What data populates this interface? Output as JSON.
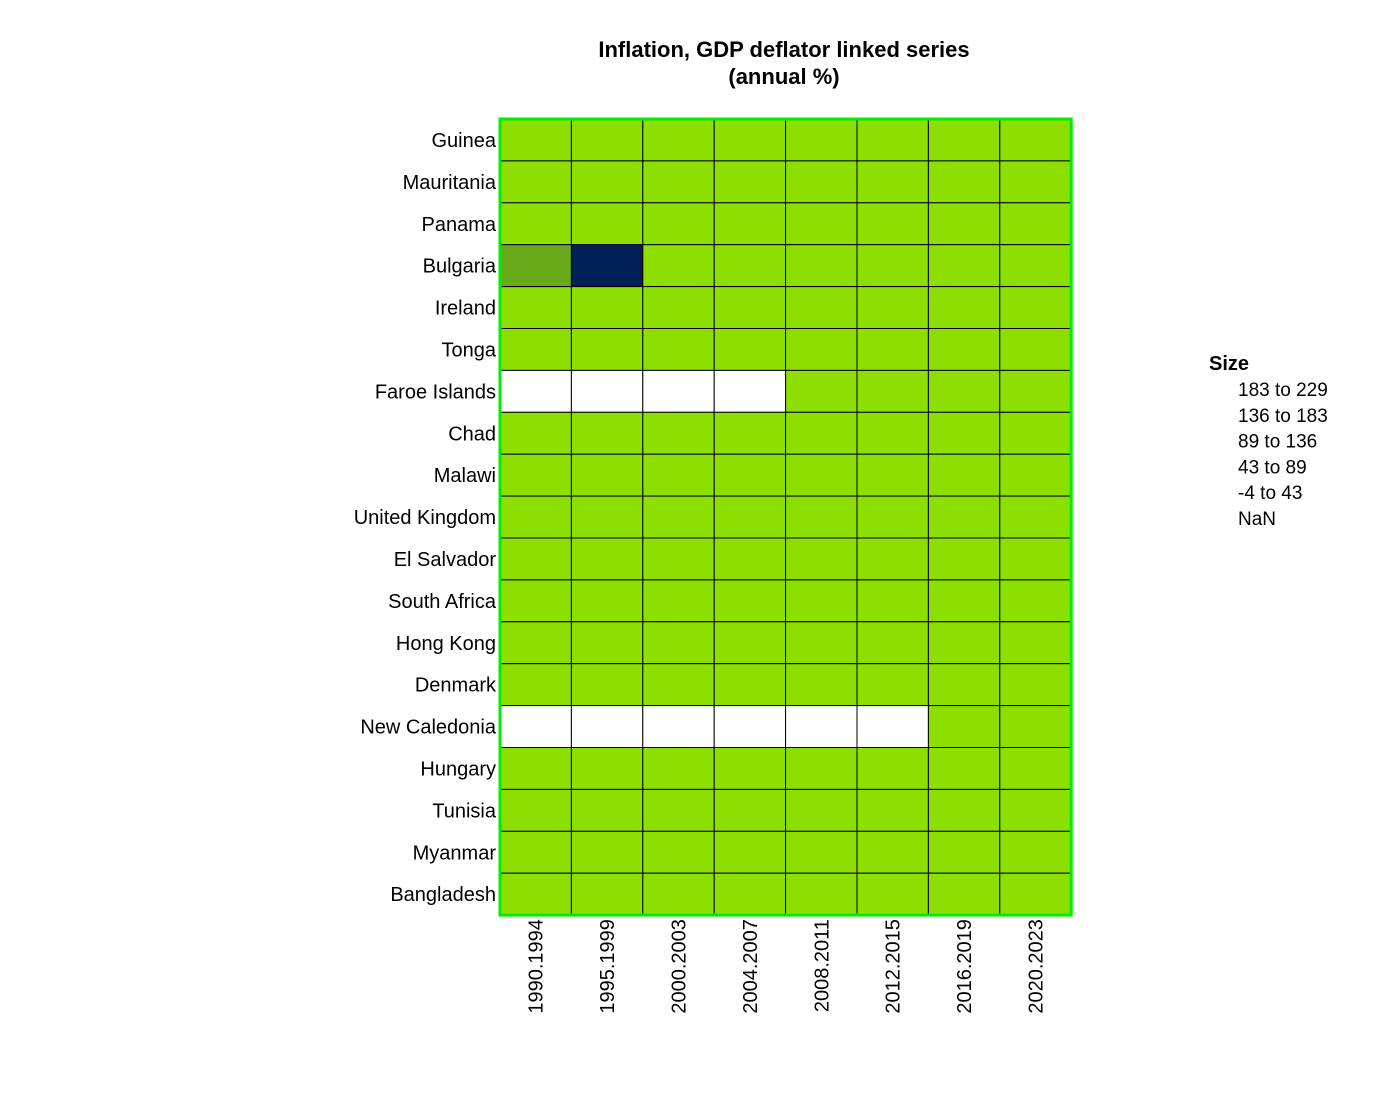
{
  "chart_data": {
    "type": "heatmap",
    "title_line1": "Inflation, GDP deflator linked series",
    "title_line2": "(annual %)",
    "rows": [
      "Guinea",
      "Mauritania",
      "Panama",
      "Bulgaria",
      "Ireland",
      "Tonga",
      "Faroe Islands",
      "Chad",
      "Malawi",
      "United Kingdom",
      "El Salvador",
      "South Africa",
      "Hong Kong",
      "Denmark",
      "New Caledonia",
      "Hungary",
      "Tunisia",
      "Myanmar",
      "Bangladesh"
    ],
    "columns": [
      "1990.1994",
      "1995.1999",
      "2000.2003",
      "2004.2007",
      "2008.2011",
      "2012.2015",
      "2016.2019",
      "2020.2023"
    ],
    "bins": [
      [
        0,
        0,
        0,
        0,
        0,
        0,
        0,
        0
      ],
      [
        0,
        0,
        0,
        0,
        0,
        0,
        0,
        0
      ],
      [
        0,
        0,
        0,
        0,
        0,
        0,
        0,
        0
      ],
      [
        1,
        4,
        0,
        0,
        0,
        0,
        0,
        0
      ],
      [
        0,
        0,
        0,
        0,
        0,
        0,
        0,
        0
      ],
      [
        0,
        0,
        0,
        0,
        0,
        0,
        0,
        0
      ],
      [
        null,
        null,
        null,
        null,
        0,
        0,
        0,
        0
      ],
      [
        0,
        0,
        0,
        0,
        0,
        0,
        0,
        0
      ],
      [
        0,
        0,
        0,
        0,
        0,
        0,
        0,
        0
      ],
      [
        0,
        0,
        0,
        0,
        0,
        0,
        0,
        0
      ],
      [
        0,
        0,
        0,
        0,
        0,
        0,
        0,
        0
      ],
      [
        0,
        0,
        0,
        0,
        0,
        0,
        0,
        0
      ],
      [
        0,
        0,
        0,
        0,
        0,
        0,
        0,
        0
      ],
      [
        0,
        0,
        0,
        0,
        0,
        0,
        0,
        0
      ],
      [
        null,
        null,
        null,
        null,
        null,
        null,
        0,
        0
      ],
      [
        0,
        0,
        0,
        0,
        0,
        0,
        0,
        0
      ],
      [
        0,
        0,
        0,
        0,
        0,
        0,
        0,
        0
      ],
      [
        0,
        0,
        0,
        0,
        0,
        0,
        0,
        0
      ],
      [
        0,
        0,
        0,
        0,
        0,
        0,
        0,
        0
      ]
    ],
    "legend": {
      "title": "Size",
      "items": [
        {
          "label": "183  to  229",
          "color": "#002157"
        },
        {
          "label": "136  to  183",
          "color": "#1f4a3e"
        },
        {
          "label": "89  to  136",
          "color": "#3f7a2a"
        },
        {
          "label": "43  to  89",
          "color": "#6aaa1a"
        },
        {
          "label": "-4  to  43",
          "color": "#8cdf00"
        },
        {
          "label": "NaN",
          "color": "#ffffff"
        }
      ],
      "position": "right"
    },
    "colors": {
      "bin_colors": [
        "#8cdf00",
        "#6aaa1a",
        "#3f7a2a",
        "#1f4a3e",
        "#002157"
      ],
      "nan_color": "#ffffff",
      "frame": "#00ee00",
      "grid": "#000000"
    }
  }
}
